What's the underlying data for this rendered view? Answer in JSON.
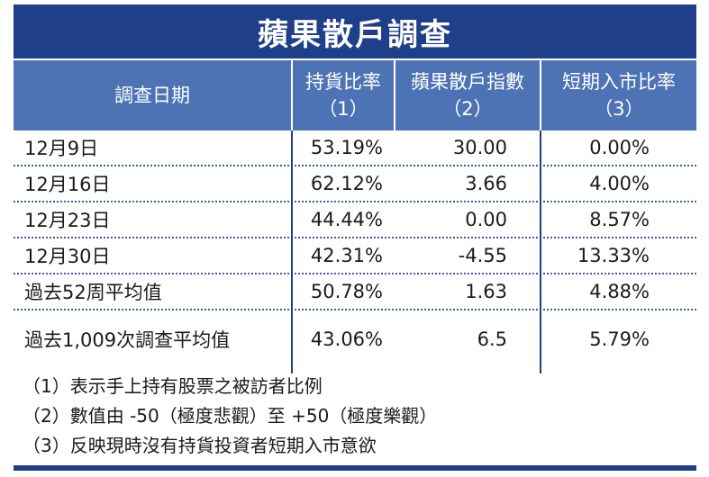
{
  "title": "蘋果散戶調查",
  "header": {
    "col0": "調查日期",
    "col1_line1": "持貨比率",
    "col1_line2": "（1）",
    "col2_line1": "蘋果散戶指數",
    "col2_line2": "（2）",
    "col3_line1": "短期入市比率",
    "col3_line2": "（3）"
  },
  "rows": [
    {
      "date": "12月9日",
      "holding": "53.19%",
      "index": "30.00",
      "entry": "0.00%"
    },
    {
      "date": "12月16日",
      "holding": "62.12%",
      "index": "3.66",
      "entry": "4.00%"
    },
    {
      "date": "12月23日",
      "holding": "44.44%",
      "index": "0.00",
      "entry": "8.57%"
    },
    {
      "date": "12月30日",
      "holding": "42.31%",
      "index": "-4.55",
      "entry": "13.33%"
    },
    {
      "date": "過去52周平均值",
      "holding": "50.78%",
      "index": "1.63",
      "entry": "4.88%"
    },
    {
      "date": "過去1,009次調查平均值",
      "holding": "43.06%",
      "index": "6.5",
      "entry": "5.79%"
    }
  ],
  "notes": [
    "（1）表示手上持有股票之被訪者比例",
    "（2）數值由 -50（極度悲觀）至 +50（極度樂觀）",
    "（3）反映現時沒有持貨投資者短期入市意欲"
  ],
  "colors": {
    "title_bg": "#1f3f8a",
    "header_bg": "#4d73b4",
    "rule": "#1f3f8a"
  }
}
